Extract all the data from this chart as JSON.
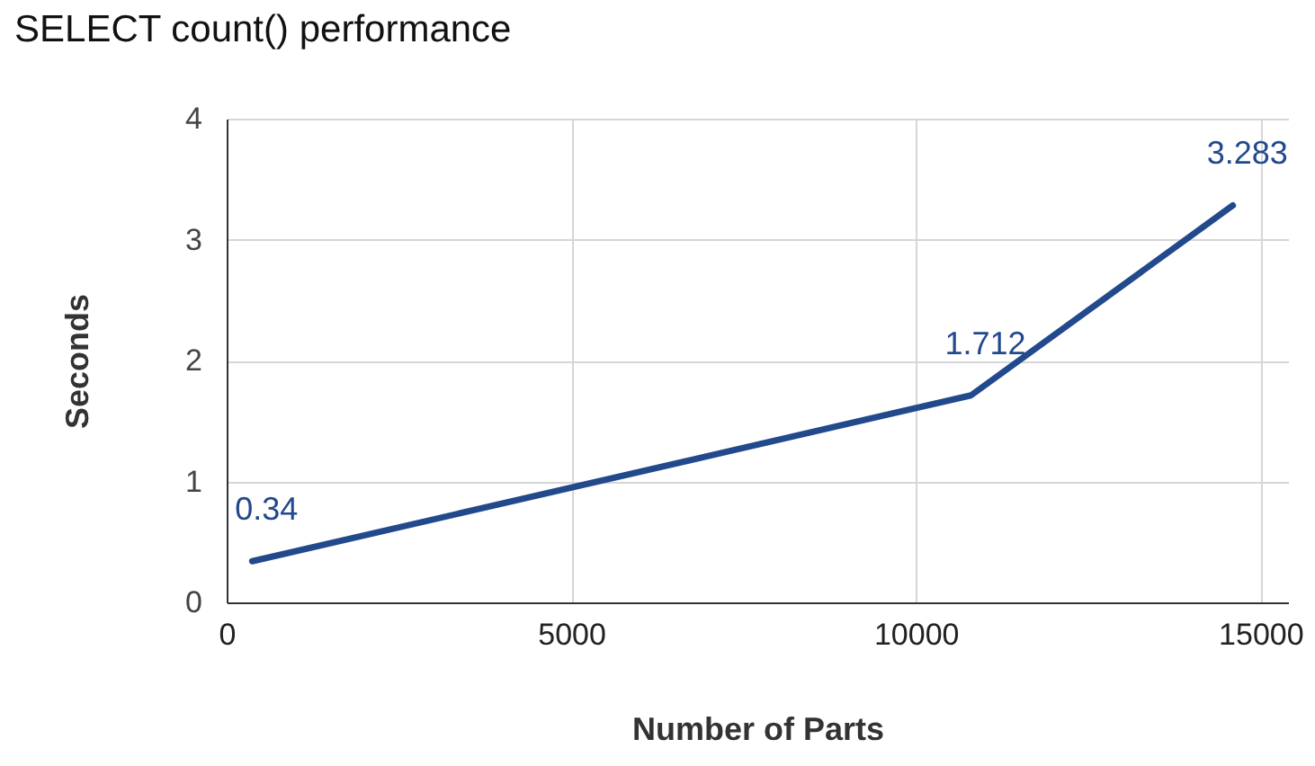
{
  "chart_data": {
    "type": "line",
    "title": "SELECT count() performance",
    "xlabel": "Number of Parts",
    "ylabel": "Seconds",
    "x": [
      370,
      10800,
      14600
    ],
    "series": [
      {
        "color": "#22498c",
        "values": [
          0.34,
          1.712,
          3.283
        ]
      }
    ],
    "xlim": [
      0,
      15400
    ],
    "xticks": [
      0,
      5000,
      10000,
      15000
    ],
    "ylim": [
      0,
      4
    ],
    "yticks": [
      0,
      1,
      2,
      3,
      4
    ],
    "grid": true,
    "data_labels": true,
    "marker": "none",
    "line_style": "solid"
  }
}
